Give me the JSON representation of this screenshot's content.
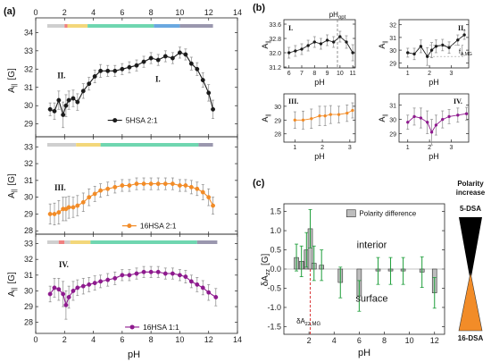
{
  "panel_labels": {
    "a": "(a)",
    "b": "(b)",
    "c": "(c)"
  },
  "colors": {
    "black": "#1a1a1a",
    "orange": "#f28c28",
    "purple": "#8e1a8e",
    "green": "#1e9e3a",
    "red": "#d62728",
    "bar_gray": "#bdbdbd",
    "phase_gray": "#cfcfcf",
    "phase_red": "#f08080",
    "phase_yellow": "#f3d77a",
    "phase_teal": "#6fd6b0",
    "phase_blue": "#6aa8e0",
    "phase_slate": "#9a97ae"
  },
  "chart_data": [
    {
      "id": "a1",
      "type": "scatter",
      "panel": "(a)",
      "ylabel": "A||",
      "ylabel_unit": "[G]",
      "roman": "II.",
      "roman2": "I.",
      "legend": "5HSA 2:1",
      "xlim": [
        0,
        14
      ],
      "ylim": [
        28.3,
        34.8
      ],
      "x_ticks": [
        0,
        2,
        4,
        6,
        8,
        10,
        12,
        14
      ],
      "y_ticks": [
        29,
        30,
        31,
        32,
        33,
        34
      ],
      "series": [
        {
          "name": "5HSA 2:1",
          "x": [
            1.0,
            1.3,
            1.6,
            1.9,
            2.1,
            2.3,
            2.6,
            2.9,
            3.3,
            3.7,
            4.1,
            4.5,
            5.0,
            5.5,
            6.0,
            6.5,
            7.0,
            7.5,
            8.0,
            8.5,
            9.0,
            9.5,
            10.0,
            10.4,
            10.8,
            11.2,
            11.6,
            12.0,
            12.3
          ],
          "y": [
            29.8,
            29.7,
            30.3,
            29.5,
            30.0,
            30.3,
            30.4,
            30.2,
            30.8,
            31.2,
            31.6,
            31.9,
            31.9,
            31.9,
            32.0,
            32.1,
            32.2,
            32.4,
            32.6,
            32.5,
            32.7,
            32.6,
            32.9,
            32.8,
            32.3,
            32.0,
            31.4,
            30.7,
            29.8
          ],
          "err": [
            0.35,
            0.45,
            0.5,
            0.7,
            0.6,
            0.5,
            0.45,
            0.45,
            0.4,
            0.35,
            0.35,
            0.35,
            0.3,
            0.3,
            0.3,
            0.3,
            0.3,
            0.3,
            0.3,
            0.3,
            0.3,
            0.3,
            0.3,
            0.3,
            0.35,
            0.35,
            0.4,
            0.45,
            0.5
          ]
        }
      ],
      "phase_bar": [
        [
          0.8,
          2.0,
          "phase_gray"
        ],
        [
          2.0,
          2.2,
          "phase_red"
        ],
        [
          2.2,
          3.6,
          "phase_yellow"
        ],
        [
          3.6,
          8.2,
          "phase_teal"
        ],
        [
          8.2,
          10.0,
          "phase_blue"
        ],
        [
          10.0,
          12.3,
          "phase_slate"
        ]
      ]
    },
    {
      "id": "a2",
      "type": "scatter",
      "panel": "(a)",
      "ylabel": "A||",
      "ylabel_unit": "[G]",
      "roman": "III.",
      "legend": "16HSA 2:1",
      "xlim": [
        0,
        14
      ],
      "ylim": [
        27.8,
        33.6
      ],
      "x_ticks": [
        0,
        2,
        4,
        6,
        8,
        10,
        12,
        14
      ],
      "y_ticks": [
        28,
        29,
        30,
        31,
        32,
        33
      ],
      "series": [
        {
          "name": "16HSA 2:1",
          "x": [
            1.0,
            1.3,
            1.6,
            1.9,
            2.1,
            2.3,
            2.6,
            2.9,
            3.3,
            3.7,
            4.1,
            4.5,
            5.0,
            5.5,
            6.0,
            6.5,
            7.0,
            7.5,
            8.0,
            8.5,
            9.0,
            9.5,
            10.0,
            10.4,
            10.8,
            11.2,
            11.6,
            12.0,
            12.3
          ],
          "y": [
            29.0,
            29.0,
            29.1,
            29.3,
            29.3,
            29.4,
            29.4,
            29.5,
            29.7,
            30.0,
            30.2,
            30.4,
            30.5,
            30.6,
            30.7,
            30.7,
            30.8,
            30.8,
            30.8,
            30.8,
            30.8,
            30.8,
            30.7,
            30.7,
            30.6,
            30.5,
            30.3,
            30.0,
            29.5
          ],
          "err": [
            0.6,
            0.65,
            0.7,
            0.7,
            0.7,
            0.65,
            0.6,
            0.6,
            0.55,
            0.5,
            0.45,
            0.4,
            0.4,
            0.35,
            0.35,
            0.35,
            0.35,
            0.35,
            0.35,
            0.35,
            0.35,
            0.35,
            0.35,
            0.35,
            0.4,
            0.4,
            0.45,
            0.5,
            0.5
          ]
        }
      ],
      "phase_bar": [
        [
          0.8,
          2.8,
          "phase_gray"
        ],
        [
          2.8,
          4.5,
          "phase_yellow"
        ],
        [
          4.5,
          11.3,
          "phase_teal"
        ],
        [
          11.3,
          12.3,
          "phase_slate"
        ]
      ]
    },
    {
      "id": "a3",
      "type": "scatter",
      "panel": "(a)",
      "ylabel": "A||",
      "ylabel_unit": "[G]",
      "roman": "IV.",
      "legend": "16HSA 1:1",
      "xlim": [
        0,
        14
      ],
      "ylim": [
        27.3,
        33.6
      ],
      "x_ticks": [
        0,
        2,
        4,
        6,
        8,
        10,
        12,
        14
      ],
      "y_ticks": [
        28,
        29,
        30,
        31,
        32,
        33
      ],
      "series": [
        {
          "name": "16HSA 1:1",
          "x": [
            1.0,
            1.3,
            1.6,
            1.9,
            2.1,
            2.3,
            2.6,
            2.9,
            3.3,
            3.7,
            4.1,
            4.5,
            5.0,
            5.5,
            6.0,
            6.5,
            7.0,
            7.5,
            8.0,
            8.5,
            9.0,
            9.5,
            10.0,
            10.4,
            10.8,
            11.2,
            11.6,
            12.0,
            12.5
          ],
          "y": [
            29.8,
            30.2,
            30.1,
            29.8,
            29.1,
            29.6,
            30.0,
            30.2,
            30.3,
            30.4,
            30.5,
            30.6,
            30.7,
            30.8,
            31.0,
            31.0,
            31.1,
            31.2,
            31.2,
            31.2,
            31.1,
            31.1,
            31.0,
            30.9,
            30.6,
            30.4,
            30.2,
            29.9,
            29.6
          ],
          "err": [
            0.5,
            0.6,
            0.7,
            0.8,
            0.9,
            0.7,
            0.6,
            0.5,
            0.5,
            0.45,
            0.45,
            0.4,
            0.4,
            0.4,
            0.35,
            0.35,
            0.35,
            0.35,
            0.35,
            0.35,
            0.35,
            0.35,
            0.35,
            0.4,
            0.4,
            0.45,
            0.45,
            0.5,
            0.55
          ]
        }
      ],
      "phase_bar": [
        [
          0.8,
          1.6,
          "phase_gray"
        ],
        [
          1.6,
          2.0,
          "phase_red"
        ],
        [
          2.0,
          2.4,
          "phase_gray"
        ],
        [
          2.4,
          3.8,
          "phase_yellow"
        ],
        [
          3.8,
          11.2,
          "phase_teal"
        ],
        [
          11.2,
          12.6,
          "phase_slate"
        ]
      ]
    },
    {
      "id": "b1",
      "type": "scatter",
      "panel": "(b)",
      "ylabel": "A||",
      "roman": "I.",
      "annotation": "pHopt",
      "xlim": [
        5.6,
        11.2
      ],
      "ylim": [
        31.15,
        33.85
      ],
      "x_ticks": [
        6,
        7,
        8,
        9,
        10,
        11
      ],
      "y_ticks": [
        31.2,
        32.0,
        32.8,
        33.6
      ],
      "vline": 9.8,
      "series": [
        {
          "name": "",
          "x": [
            6.0,
            6.5,
            7.0,
            7.5,
            8.0,
            8.5,
            9.0,
            9.5,
            10.0,
            10.5,
            11.0
          ],
          "y": [
            32.0,
            32.1,
            32.2,
            32.4,
            32.6,
            32.5,
            32.7,
            32.6,
            32.9,
            32.6,
            32.0
          ],
          "err": [
            0.3,
            0.3,
            0.3,
            0.3,
            0.3,
            0.3,
            0.3,
            0.3,
            0.3,
            0.35,
            0.45
          ]
        }
      ]
    },
    {
      "id": "b2",
      "type": "scatter",
      "panel": "(b)",
      "ylabel": "A||",
      "roman": "II.",
      "annotation": "fA,MG",
      "xlim": [
        0.6,
        3.8
      ],
      "ylim": [
        28.6,
        32.4
      ],
      "x_ticks": [
        1,
        2,
        3
      ],
      "y_ticks": [
        29,
        30,
        31,
        32
      ],
      "series": [
        {
          "name": "",
          "x": [
            1.0,
            1.3,
            1.6,
            1.9,
            2.1,
            2.3,
            2.6,
            2.9,
            3.3,
            3.6
          ],
          "y": [
            29.8,
            29.7,
            30.3,
            29.5,
            30.0,
            30.3,
            30.4,
            30.2,
            30.8,
            31.2
          ],
          "err": [
            0.35,
            0.45,
            0.5,
            0.7,
            0.6,
            0.5,
            0.45,
            0.45,
            0.4,
            0.35
          ]
        }
      ]
    },
    {
      "id": "b3",
      "type": "scatter",
      "panel": "(b)",
      "ylabel": "A||",
      "roman": "III.",
      "xlim": [
        0.6,
        3.2
      ],
      "ylim": [
        27.4,
        30.9
      ],
      "x_ticks": [
        1,
        2,
        3
      ],
      "y_ticks": [
        28,
        29,
        30
      ],
      "series": [
        {
          "name": "",
          "x": [
            1.0,
            1.3,
            1.6,
            1.9,
            2.1,
            2.3,
            2.6,
            2.9,
            3.1
          ],
          "y": [
            29.0,
            29.0,
            29.1,
            29.3,
            29.3,
            29.4,
            29.4,
            29.5,
            29.7
          ],
          "err": [
            0.6,
            0.65,
            0.7,
            0.7,
            0.7,
            0.65,
            0.6,
            0.6,
            0.55
          ]
        }
      ]
    },
    {
      "id": "b4",
      "type": "scatter",
      "panel": "(b)",
      "ylabel": "A||",
      "roman": "IV.",
      "xlim": [
        0.6,
        3.8
      ],
      "ylim": [
        28.4,
        31.8
      ],
      "x_ticks": [
        1,
        2,
        3
      ],
      "y_ticks": [
        29,
        30,
        31
      ],
      "series": [
        {
          "name": "",
          "x": [
            1.0,
            1.3,
            1.6,
            1.9,
            2.1,
            2.3,
            2.6,
            2.9,
            3.3,
            3.7
          ],
          "y": [
            29.8,
            30.2,
            30.1,
            29.8,
            29.1,
            29.6,
            30.0,
            30.2,
            30.3,
            30.4
          ],
          "err": [
            0.5,
            0.6,
            0.7,
            0.8,
            0.9,
            0.7,
            0.6,
            0.5,
            0.5,
            0.45
          ]
        }
      ]
    },
    {
      "id": "c",
      "type": "bar",
      "panel": "(c)",
      "ylabel": "δAzz [G]",
      "xlabel": "pH",
      "legend": "Polarity difference",
      "xlim": [
        0,
        12.8
      ],
      "ylim": [
        -1.7,
        1.7
      ],
      "x_ticks": [
        2,
        4,
        6,
        8,
        10,
        12
      ],
      "y_ticks": [
        -1.5,
        -1.0,
        -0.5,
        0.0,
        0.5,
        1.0,
        1.5
      ],
      "annotations": [
        "interior",
        "surface",
        "δAzz,MG"
      ],
      "vline": 2.1,
      "series": [
        {
          "name": "Polarity difference",
          "x": [
            1.0,
            1.4,
            1.8,
            2.1,
            2.4,
            3.0,
            4.5,
            6.0,
            7.5,
            8.5,
            9.5,
            11.0,
            12.0
          ],
          "values": [
            0.3,
            0.2,
            0.5,
            1.05,
            0.15,
            0.1,
            -0.35,
            -0.7,
            -0.05,
            -0.05,
            -0.05,
            -0.08,
            -0.62
          ],
          "err": [
            0.35,
            0.4,
            0.45,
            0.5,
            0.45,
            0.4,
            0.4,
            0.4,
            0.35,
            0.35,
            0.35,
            0.4,
            0.4
          ]
        }
      ]
    }
  ],
  "sidebar": {
    "title_line1": "Polarity",
    "title_line2": "increase",
    "top_label": "5-DSA",
    "bottom_label": "16-DSA"
  },
  "axes_labels": {
    "ph": "pH",
    "a_par_unit": "[G]"
  }
}
